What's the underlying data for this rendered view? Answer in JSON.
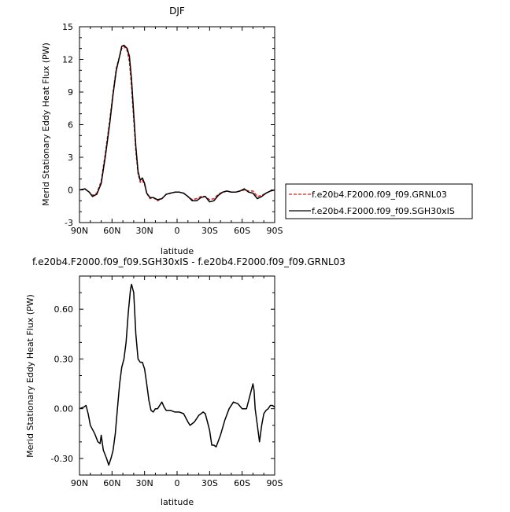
{
  "chart_data": [
    {
      "type": "line",
      "title": "DJF",
      "xlabel": "latitude",
      "ylabel": "Merid Stationary Eddy Heat Flux (PW)",
      "x_ticks": [
        "90N",
        "60N",
        "30N",
        "0",
        "30S",
        "60S",
        "90S"
      ],
      "xlim": [
        90,
        -90
      ],
      "ylim": [
        -3,
        15
      ],
      "y_ticks": [
        "-3",
        "0",
        "3",
        "6",
        "9",
        "12",
        "15"
      ],
      "y_tick_values": [
        -3,
        0,
        3,
        6,
        9,
        12,
        15
      ],
      "legend_position": "right",
      "series": [
        {
          "name": "f.e20b4.F2000.f09_f09.GRNL03",
          "color": "#dd2222",
          "dash": "dashed",
          "x": [
            90,
            85,
            81,
            78,
            74,
            70,
            66,
            62,
            59,
            56,
            53,
            51,
            49,
            46,
            44,
            42,
            40,
            38,
            36,
            34,
            32,
            30,
            28,
            25,
            22,
            18,
            14,
            10,
            6,
            2,
            -2,
            -6,
            -10,
            -14,
            -18,
            -22,
            -26,
            -30,
            -34,
            -38,
            -42,
            -46,
            -50,
            -54,
            -58,
            -62,
            -66,
            -70,
            -74,
            -78,
            -82,
            -86,
            -90
          ],
          "y": [
            0.0,
            0.1,
            -0.2,
            -0.5,
            -0.3,
            0.8,
            3.5,
            6.5,
            9.0,
            11.2,
            12.3,
            13.0,
            13.2,
            12.8,
            11.8,
            9.5,
            6.5,
            3.6,
            1.5,
            0.7,
            0.9,
            0.5,
            -0.3,
            -0.8,
            -0.7,
            -1.0,
            -0.8,
            -0.4,
            -0.3,
            -0.2,
            -0.2,
            -0.3,
            -0.6,
            -0.9,
            -0.8,
            -0.6,
            -0.6,
            -0.9,
            -0.8,
            -0.4,
            -0.2,
            -0.1,
            -0.2,
            -0.2,
            -0.1,
            0.0,
            -0.1,
            -0.1,
            -0.6,
            -0.5,
            -0.3,
            -0.1,
            0.0
          ]
        },
        {
          "name": "f.e20b4.F2000.f09_f09.SGH30xIS",
          "color": "#000000",
          "dash": "solid",
          "x": [
            90,
            85,
            81,
            78,
            74,
            70,
            66,
            62,
            59,
            56,
            53,
            51,
            49,
            46,
            44,
            42,
            40,
            38,
            36,
            34,
            32,
            30,
            28,
            25,
            22,
            18,
            14,
            10,
            6,
            2,
            -2,
            -6,
            -10,
            -14,
            -18,
            -22,
            -26,
            -30,
            -34,
            -38,
            -42,
            -46,
            -50,
            -54,
            -58,
            -62,
            -66,
            -70,
            -74,
            -78,
            -82,
            -86,
            -90
          ],
          "y": [
            0.0,
            0.1,
            -0.2,
            -0.6,
            -0.4,
            0.6,
            3.2,
            6.2,
            8.8,
            11.0,
            12.3,
            13.2,
            13.3,
            13.0,
            12.3,
            10.2,
            7.0,
            4.0,
            1.7,
            0.9,
            1.1,
            0.6,
            -0.3,
            -0.7,
            -0.7,
            -0.9,
            -0.8,
            -0.4,
            -0.3,
            -0.2,
            -0.2,
            -0.3,
            -0.6,
            -1.0,
            -1.0,
            -0.7,
            -0.6,
            -1.1,
            -1.0,
            -0.5,
            -0.2,
            -0.1,
            -0.2,
            -0.2,
            -0.1,
            0.1,
            -0.2,
            -0.3,
            -0.8,
            -0.6,
            -0.3,
            -0.1,
            0.0
          ]
        }
      ]
    },
    {
      "type": "line",
      "title": "f.e20b4.F2000.f09_f09.SGH30xIS - f.e20b4.F2000.f09_f09.GRNL03",
      "xlabel": "latitude",
      "ylabel": "Merid Stationary Eddy Heat Flux (PW)",
      "x_ticks": [
        "90N",
        "60N",
        "30N",
        "0",
        "30S",
        "60S",
        "90S"
      ],
      "xlim": [
        90,
        -90
      ],
      "ylim": [
        -0.4,
        0.8
      ],
      "y_ticks": [
        "-0.30",
        "0.00",
        "0.30",
        "0.60"
      ],
      "y_tick_values": [
        -0.3,
        0.0,
        0.3,
        0.6
      ],
      "series": [
        {
          "color": "#000000",
          "x": [
            90,
            86,
            84,
            82,
            80,
            76,
            73,
            71,
            70,
            68,
            65,
            63,
            61,
            59,
            57,
            55,
            53,
            51,
            49,
            47,
            45,
            43,
            42,
            40,
            38,
            36,
            34,
            32,
            30,
            28,
            26,
            24,
            22,
            20,
            18,
            14,
            12,
            10,
            6,
            2,
            -2,
            -6,
            -10,
            -12,
            -14,
            -16,
            -20,
            -24,
            -26,
            -28,
            -30,
            -32,
            -34,
            -36,
            -40,
            -44,
            -48,
            -52,
            -56,
            -60,
            -64,
            -68,
            -70,
            -71,
            -72,
            -74,
            -76,
            -78,
            -80,
            -82,
            -84,
            -86,
            -88,
            -90
          ],
          "y": [
            0.0,
            0.01,
            0.02,
            -0.03,
            -0.1,
            -0.15,
            -0.2,
            -0.21,
            -0.16,
            -0.25,
            -0.3,
            -0.34,
            -0.3,
            -0.25,
            -0.15,
            0.0,
            0.15,
            0.25,
            0.3,
            0.4,
            0.58,
            0.72,
            0.75,
            0.7,
            0.45,
            0.3,
            0.28,
            0.28,
            0.24,
            0.15,
            0.05,
            -0.01,
            -0.02,
            0.0,
            0.0,
            0.04,
            0.01,
            -0.01,
            -0.01,
            -0.02,
            -0.02,
            -0.03,
            -0.08,
            -0.1,
            -0.09,
            -0.08,
            -0.04,
            -0.02,
            -0.03,
            -0.08,
            -0.13,
            -0.22,
            -0.22,
            -0.23,
            -0.16,
            -0.07,
            0.0,
            0.04,
            0.03,
            0.0,
            0.0,
            0.1,
            0.15,
            0.11,
            0.0,
            -0.1,
            -0.2,
            -0.1,
            -0.03,
            -0.01,
            0.0,
            0.02,
            0.02,
            0.01
          ]
        }
      ]
    }
  ]
}
